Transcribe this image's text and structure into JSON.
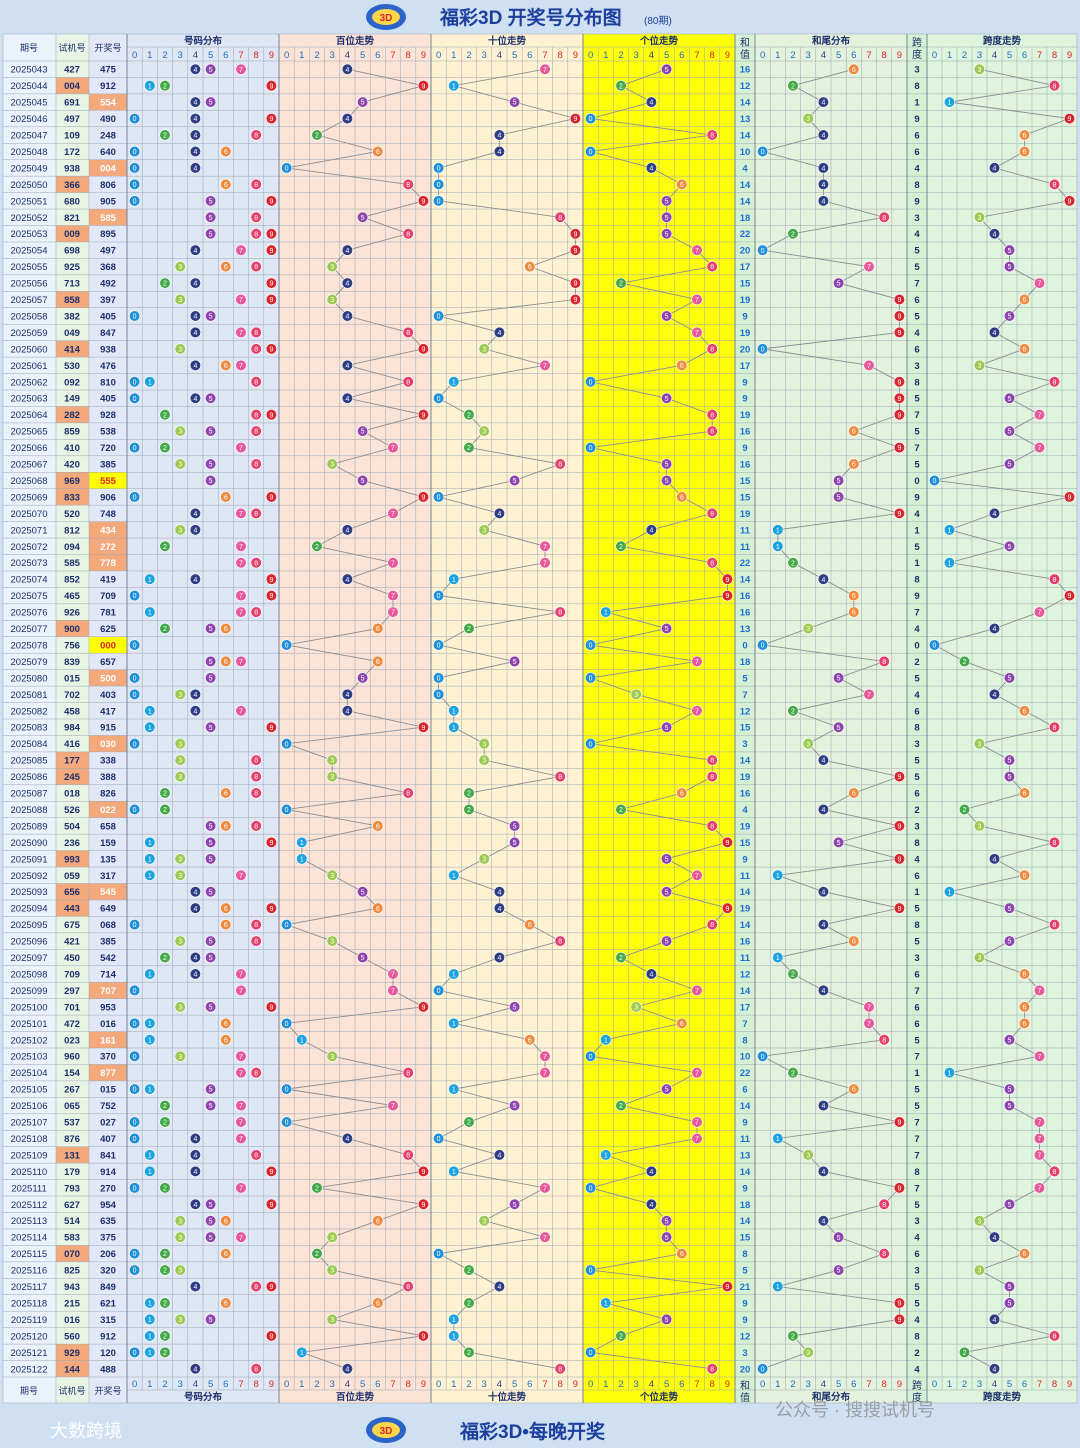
{
  "header": {
    "title": "福彩3D 开奖号分布图",
    "subtitle": "(80期)"
  },
  "footer": {
    "title": "福彩3D•每晚开奖",
    "watermark_left": "大数跨境",
    "watermark_right": "公众号 · 搜搜试机号"
  },
  "columns": {
    "period": "期号",
    "trial": "试机号",
    "draw": "开奖号",
    "dist": "号码分布",
    "hundreds": "百位走势",
    "tens": "十位走势",
    "units": "个位走势",
    "sum_top": "和",
    "sum_bottom": "值",
    "sum_tail": "和尾分布",
    "span_top": "跨",
    "span_bottom": "度",
    "span_trend": "跨度走势"
  },
  "digits": [
    "0",
    "1",
    "2",
    "3",
    "4",
    "5",
    "6",
    "7",
    "8",
    "9"
  ],
  "colors": {
    "balls": [
      "#1e8fd8",
      "#1aa3e0",
      "#43a847",
      "#9cc94f",
      "#2f3d85",
      "#8e44ad",
      "#ef8a3e",
      "#e8579a",
      "#e53e6c",
      "#d9262e"
    ],
    "sum_tail_text": "#1a6fd6",
    "repeat_highlight": "#f4a97c",
    "triple_highlight": "#ffff00",
    "units_band": "#ffff0a"
  },
  "chart_data": {
    "type": "table",
    "series_columns": [
      "period",
      "trial",
      "draw",
      "sum",
      "span"
    ],
    "rows": [
      [
        "2025043",
        "427",
        "475",
        16,
        3
      ],
      [
        "2025044",
        "004",
        "912",
        12,
        8
      ],
      [
        "2025045",
        "691",
        "554",
        14,
        1
      ],
      [
        "2025046",
        "497",
        "490",
        13,
        9
      ],
      [
        "2025047",
        "109",
        "248",
        14,
        6
      ],
      [
        "2025048",
        "172",
        "640",
        10,
        6
      ],
      [
        "2025049",
        "938",
        "004",
        4,
        4
      ],
      [
        "2025050",
        "366",
        "806",
        14,
        8
      ],
      [
        "2025051",
        "680",
        "905",
        14,
        9
      ],
      [
        "2025052",
        "821",
        "585",
        18,
        3
      ],
      [
        "2025053",
        "009",
        "895",
        22,
        4
      ],
      [
        "2025054",
        "698",
        "497",
        20,
        5
      ],
      [
        "2025055",
        "925",
        "368",
        17,
        5
      ],
      [
        "2025056",
        "713",
        "492",
        15,
        7
      ],
      [
        "2025057",
        "858",
        "397",
        19,
        6
      ],
      [
        "2025058",
        "382",
        "405",
        9,
        5
      ],
      [
        "2025059",
        "049",
        "847",
        19,
        4
      ],
      [
        "2025060",
        "414",
        "938",
        20,
        6
      ],
      [
        "2025061",
        "530",
        "476",
        17,
        3
      ],
      [
        "2025062",
        "092",
        "810",
        9,
        8
      ],
      [
        "2025063",
        "149",
        "405",
        9,
        5
      ],
      [
        "2025064",
        "282",
        "928",
        19,
        7
      ],
      [
        "2025065",
        "859",
        "538",
        16,
        5
      ],
      [
        "2025066",
        "410",
        "720",
        9,
        7
      ],
      [
        "2025067",
        "420",
        "385",
        16,
        5
      ],
      [
        "2025068",
        "969",
        "555",
        15,
        0
      ],
      [
        "2025069",
        "833",
        "906",
        15,
        9
      ],
      [
        "2025070",
        "520",
        "748",
        19,
        4
      ],
      [
        "2025071",
        "812",
        "434",
        11,
        1
      ],
      [
        "2025072",
        "094",
        "272",
        11,
        5
      ],
      [
        "2025073",
        "585",
        "778",
        22,
        1
      ],
      [
        "2025074",
        "852",
        "419",
        14,
        8
      ],
      [
        "2025075",
        "465",
        "709",
        16,
        9
      ],
      [
        "2025076",
        "926",
        "781",
        16,
        7
      ],
      [
        "2025077",
        "900",
        "625",
        13,
        4
      ],
      [
        "2025078",
        "756",
        "000",
        0,
        0
      ],
      [
        "2025079",
        "839",
        "657",
        18,
        2
      ],
      [
        "2025080",
        "015",
        "500",
        5,
        5
      ],
      [
        "2025081",
        "702",
        "403",
        7,
        4
      ],
      [
        "2025082",
        "458",
        "417",
        12,
        6
      ],
      [
        "2025083",
        "984",
        "915",
        15,
        8
      ],
      [
        "2025084",
        "416",
        "030",
        3,
        3
      ],
      [
        "2025085",
        "177",
        "338",
        14,
        5
      ],
      [
        "2025086",
        "245",
        "388",
        19,
        5
      ],
      [
        "2025087",
        "018",
        "826",
        16,
        6
      ],
      [
        "2025088",
        "526",
        "022",
        4,
        2
      ],
      [
        "2025089",
        "504",
        "658",
        19,
        3
      ],
      [
        "2025090",
        "236",
        "159",
        15,
        8
      ],
      [
        "2025091",
        "993",
        "135",
        9,
        4
      ],
      [
        "2025092",
        "059",
        "317",
        11,
        6
      ],
      [
        "2025093",
        "656",
        "545",
        14,
        1
      ],
      [
        "2025094",
        "443",
        "649",
        19,
        5
      ],
      [
        "2025095",
        "675",
        "068",
        14,
        8
      ],
      [
        "2025096",
        "421",
        "385",
        16,
        5
      ],
      [
        "2025097",
        "450",
        "542",
        11,
        3
      ],
      [
        "2025098",
        "709",
        "714",
        12,
        6
      ],
      [
        "2025099",
        "297",
        "707",
        14,
        7
      ],
      [
        "2025100",
        "701",
        "953",
        17,
        6
      ],
      [
        "2025101",
        "472",
        "016",
        7,
        6
      ],
      [
        "2025102",
        "023",
        "161",
        8,
        5
      ],
      [
        "2025103",
        "960",
        "370",
        10,
        7
      ],
      [
        "2025104",
        "154",
        "877",
        22,
        1
      ],
      [
        "2025105",
        "267",
        "015",
        6,
        5
      ],
      [
        "2025106",
        "065",
        "752",
        14,
        5
      ],
      [
        "2025107",
        "537",
        "027",
        9,
        7
      ],
      [
        "2025108",
        "876",
        "407",
        11,
        7
      ],
      [
        "2025109",
        "131",
        "841",
        13,
        7
      ],
      [
        "2025110",
        "179",
        "914",
        14,
        8
      ],
      [
        "2025111",
        "793",
        "270",
        9,
        7
      ],
      [
        "2025112",
        "627",
        "954",
        18,
        5
      ],
      [
        "2025113",
        "514",
        "635",
        14,
        3
      ],
      [
        "2025114",
        "583",
        "375",
        15,
        4
      ],
      [
        "2025115",
        "070",
        "206",
        8,
        6
      ],
      [
        "2025116",
        "825",
        "320",
        5,
        3
      ],
      [
        "2025117",
        "943",
        "849",
        21,
        5
      ],
      [
        "2025118",
        "215",
        "621",
        9,
        5
      ],
      [
        "2025119",
        "016",
        "315",
        9,
        4
      ],
      [
        "2025120",
        "560",
        "912",
        12,
        8
      ],
      [
        "2025121",
        "929",
        "120",
        3,
        2
      ],
      [
        "2025122",
        "144",
        "488",
        20,
        4
      ]
    ],
    "repeat_trial_rows": [
      "2025044",
      "2025050",
      "2025053",
      "2025057",
      "2025060",
      "2025064",
      "2025068",
      "2025069",
      "2025077",
      "2025085",
      "2025086",
      "2025091",
      "2025093",
      "2025094",
      "2025109",
      "2025115",
      "2025121",
      "2025122"
    ],
    "repeat_draw_rows": [
      "2025045",
      "2025049",
      "2025052",
      "2025071",
      "2025072",
      "2025073",
      "2025080",
      "2025084",
      "2025088",
      "2025093",
      "2025099",
      "2025102",
      "2025104"
    ],
    "triple_draw_rows": [
      "2025068",
      "2025078"
    ]
  }
}
